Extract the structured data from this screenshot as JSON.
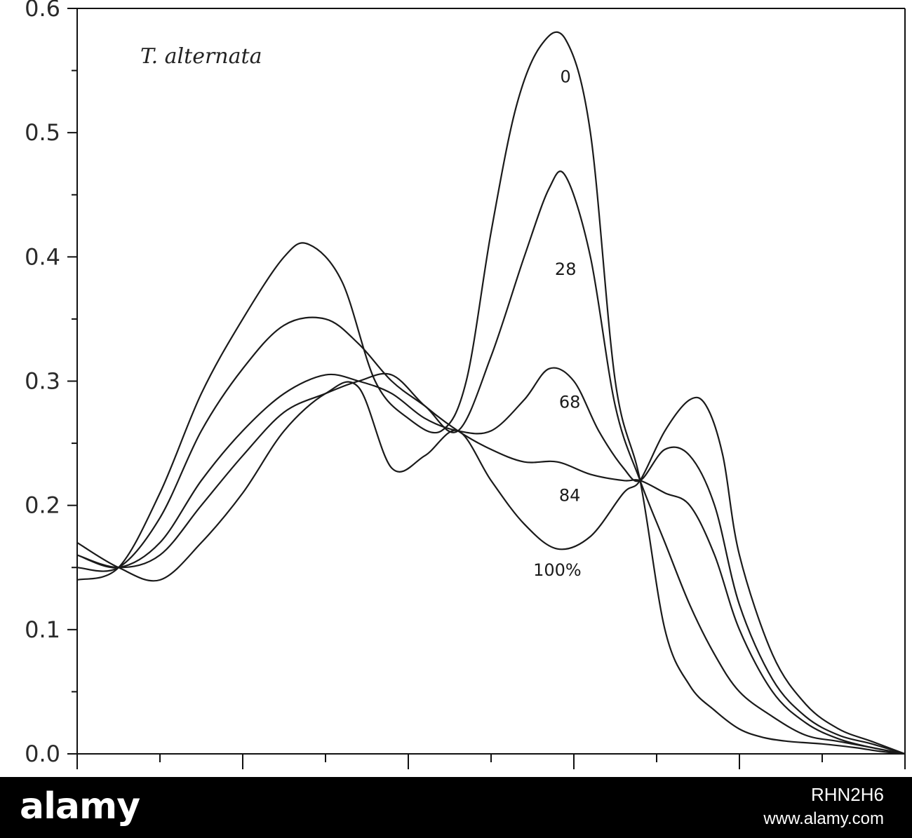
{
  "chart_data": {
    "type": "line",
    "title": "",
    "xlabel": "",
    "ylabel": "",
    "annotation": "T. alternata",
    "ylim": [
      0,
      0.6
    ],
    "xlim": [
      0,
      1
    ],
    "yticks": [
      0.0,
      0.1,
      0.2,
      0.3,
      0.4,
      0.5,
      0.6
    ],
    "ytick_labels": [
      "0.0",
      "0.1",
      "0.2",
      "0.3",
      "0.4",
      "0.5",
      "0.6"
    ],
    "xticks_major": [
      0,
      0.2,
      0.4,
      0.6,
      0.8,
      1.0
    ],
    "xticks_minor": [
      0.1,
      0.3,
      0.5,
      0.7,
      0.9
    ],
    "grid": false,
    "series": [
      {
        "name": "0",
        "label_pos": [
          0.59,
          0.545
        ],
        "x": [
          0,
          0.05,
          0.1,
          0.15,
          0.2,
          0.25,
          0.28,
          0.32,
          0.36,
          0.4,
          0.44,
          0.47,
          0.5,
          0.53,
          0.56,
          0.59,
          0.62,
          0.65,
          0.68,
          0.71,
          0.74,
          0.77,
          0.8,
          0.83,
          0.86,
          0.9,
          0.94,
          0.97,
          1.0
        ],
        "y": [
          0.14,
          0.15,
          0.21,
          0.29,
          0.35,
          0.4,
          0.41,
          0.38,
          0.3,
          0.27,
          0.26,
          0.3,
          0.42,
          0.52,
          0.57,
          0.575,
          0.5,
          0.3,
          0.22,
          0.1,
          0.055,
          0.035,
          0.02,
          0.013,
          0.01,
          0.008,
          0.005,
          0.002,
          0.0
        ]
      },
      {
        "name": "28",
        "label_pos": [
          0.59,
          0.39
        ],
        "x": [
          0,
          0.05,
          0.1,
          0.15,
          0.2,
          0.25,
          0.3,
          0.34,
          0.38,
          0.42,
          0.46,
          0.5,
          0.54,
          0.57,
          0.59,
          0.62,
          0.65,
          0.68,
          0.71,
          0.74,
          0.77,
          0.8,
          0.84,
          0.88,
          0.92,
          0.96,
          1.0
        ],
        "y": [
          0.15,
          0.15,
          0.19,
          0.26,
          0.31,
          0.345,
          0.35,
          0.33,
          0.3,
          0.28,
          0.26,
          0.32,
          0.4,
          0.455,
          0.465,
          0.4,
          0.28,
          0.22,
          0.17,
          0.12,
          0.08,
          0.05,
          0.03,
          0.015,
          0.01,
          0.005,
          0.0
        ]
      },
      {
        "name": "68",
        "label_pos": [
          0.595,
          0.283
        ],
        "x": [
          0,
          0.05,
          0.1,
          0.15,
          0.2,
          0.25,
          0.3,
          0.34,
          0.38,
          0.42,
          0.46,
          0.5,
          0.54,
          0.57,
          0.6,
          0.63,
          0.66,
          0.68,
          0.71,
          0.74,
          0.77,
          0.8,
          0.84,
          0.88,
          0.92,
          0.96,
          1.0
        ],
        "y": [
          0.16,
          0.15,
          0.17,
          0.22,
          0.26,
          0.29,
          0.305,
          0.3,
          0.29,
          0.27,
          0.26,
          0.26,
          0.285,
          0.31,
          0.3,
          0.26,
          0.23,
          0.22,
          0.245,
          0.24,
          0.2,
          0.12,
          0.06,
          0.03,
          0.015,
          0.008,
          0.0
        ]
      },
      {
        "name": "84",
        "label_pos": [
          0.595,
          0.208
        ],
        "x": [
          0,
          0.05,
          0.1,
          0.15,
          0.2,
          0.25,
          0.3,
          0.34,
          0.38,
          0.42,
          0.46,
          0.5,
          0.54,
          0.58,
          0.62,
          0.66,
          0.68,
          0.71,
          0.74,
          0.77,
          0.8,
          0.84,
          0.88,
          0.92,
          0.96,
          1.0
        ],
        "y": [
          0.16,
          0.15,
          0.16,
          0.2,
          0.24,
          0.275,
          0.29,
          0.3,
          0.305,
          0.28,
          0.26,
          0.245,
          0.235,
          0.235,
          0.225,
          0.22,
          0.22,
          0.21,
          0.2,
          0.16,
          0.1,
          0.05,
          0.025,
          0.012,
          0.005,
          0.0
        ]
      },
      {
        "name": "100%",
        "label_pos": [
          0.58,
          0.148
        ],
        "x": [
          0,
          0.05,
          0.1,
          0.15,
          0.2,
          0.25,
          0.3,
          0.34,
          0.38,
          0.42,
          0.46,
          0.5,
          0.54,
          0.58,
          0.62,
          0.66,
          0.68,
          0.71,
          0.74,
          0.76,
          0.78,
          0.8,
          0.84,
          0.88,
          0.92,
          0.96,
          1.0
        ],
        "y": [
          0.17,
          0.15,
          0.14,
          0.17,
          0.21,
          0.26,
          0.29,
          0.295,
          0.23,
          0.24,
          0.26,
          0.22,
          0.185,
          0.165,
          0.175,
          0.21,
          0.22,
          0.26,
          0.285,
          0.28,
          0.24,
          0.16,
          0.08,
          0.04,
          0.02,
          0.01,
          0.0
        ]
      }
    ]
  },
  "watermark": {
    "logo": "alamy",
    "image_id": "RHN2H6",
    "url": "www.alamy.com"
  }
}
